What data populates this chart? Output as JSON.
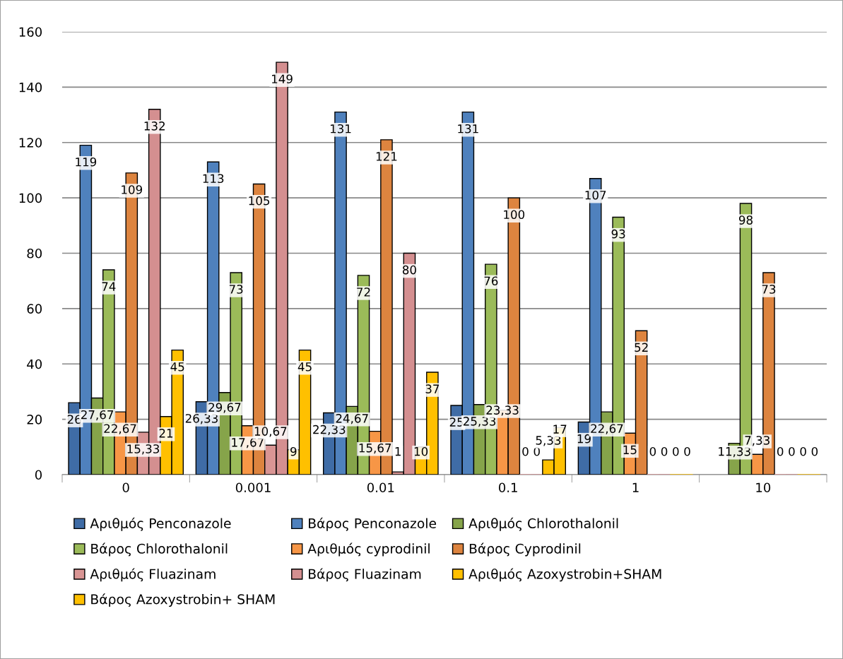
{
  "chart_data": {
    "type": "bar",
    "categories": [
      "0",
      "0.001",
      "0.01",
      "0.1",
      "1",
      "10"
    ],
    "series": [
      {
        "name": "Αριθμός Penconazole",
        "color": "#3f6ca6",
        "values": [
          26,
          26.33,
          22.33,
          25,
          19,
          null
        ],
        "value_labels": [
          "26",
          "26,33",
          "22,33",
          "25",
          "19",
          null
        ]
      },
      {
        "name": "Βάρος Penconazole",
        "color": "#4f81bd",
        "values": [
          119,
          113,
          131,
          131,
          107,
          null
        ],
        "value_labels": [
          "119",
          "113",
          "131",
          "131",
          "107",
          null
        ]
      },
      {
        "name": "Αριθμός Chlorothalonil",
        "color": "#86a44a",
        "values": [
          27.67,
          29.67,
          24.67,
          25.33,
          22.67,
          11.33
        ],
        "value_labels": [
          "27,67",
          "29,67",
          "24,67",
          "25,33",
          "22,67",
          "11,33"
        ]
      },
      {
        "name": "Βάρος Chlorothalonil",
        "color": "#9bbb59",
        "values": [
          74,
          73,
          72,
          76,
          93,
          98
        ],
        "value_labels": [
          "74",
          "73",
          "72",
          "76",
          "93",
          "98"
        ]
      },
      {
        "name": "Αριθμός cyprodinil",
        "color": "#f79646",
        "values": [
          22.67,
          17.67,
          15.67,
          23.33,
          15,
          7.33
        ],
        "value_labels": [
          "22,67",
          "17,67",
          "15,67",
          "23,33",
          "15",
          "7,33"
        ]
      },
      {
        "name": "Βάρος Cyprodinil",
        "color": "#dd843f",
        "values": [
          109,
          105,
          121,
          100,
          52,
          73
        ],
        "value_labels": [
          "109",
          "105",
          "121",
          "100",
          "52",
          "73"
        ]
      },
      {
        "name": "Αριθμός Fluazinam",
        "color": "#d99594",
        "values": [
          15.33,
          10.67,
          1,
          0,
          0,
          0
        ],
        "value_labels": [
          "15,33",
          "10,67",
          "1",
          "0",
          "0",
          "0"
        ]
      },
      {
        "name": "Βάρος Fluazinam",
        "color": "#d48f90",
        "values": [
          132,
          149,
          80,
          0,
          0,
          0
        ],
        "value_labels": [
          "132",
          "149",
          "80",
          "0",
          "0",
          "0"
        ]
      },
      {
        "name": "Αριθμός Azoxystrobin+SHAM",
        "color": "#ffc000",
        "values": [
          21,
          9,
          10,
          5.33,
          0,
          0
        ],
        "value_labels": [
          "21",
          "9",
          "10",
          "5,33",
          "0",
          "0"
        ]
      },
      {
        "name": "Βάρος Azoxystrobin+ SHAM",
        "color": "#ffc000",
        "values": [
          45,
          45,
          37,
          17,
          0,
          0
        ],
        "value_labels": [
          "45",
          "45",
          "37",
          "17",
          "0",
          "0"
        ]
      }
    ],
    "ylim": [
      0,
      160
    ],
    "yticks": [
      0,
      20,
      40,
      60,
      80,
      100,
      120,
      140,
      160
    ],
    "grid": "y",
    "legend": "bottom"
  }
}
